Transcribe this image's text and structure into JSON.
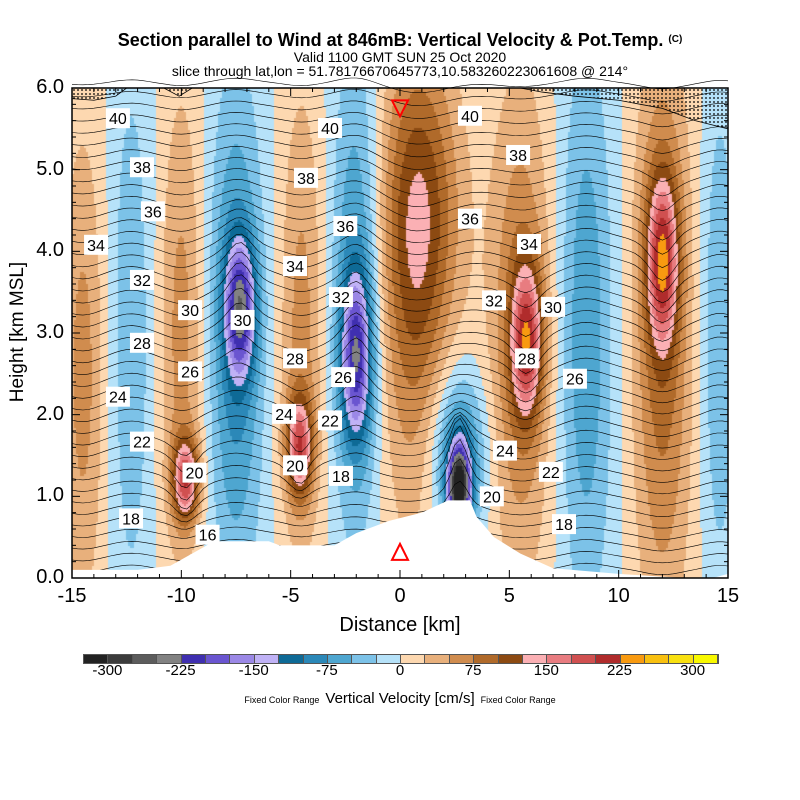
{
  "title": "Section parallel to Wind at 846mB: Vertical Velocity & Pot.Temp.",
  "title_mark": "(C)",
  "subtitle1": "Valid 1100 GMT SUN 25 Oct 2020",
  "subtitle2": "slice through lat,lon = 51.78176670645773,10.583260223061608 @ 214°",
  "chart_data": {
    "type": "heatmap",
    "xlabel": "Distance [km]",
    "ylabel": "Height [km MSL]",
    "xlim": [
      -15,
      15
    ],
    "ylim": [
      0,
      6
    ],
    "xticks": [
      "-15",
      "-10",
      "-5",
      "0",
      "5",
      "10",
      "15"
    ],
    "yticks": [
      "0.0",
      "1.0",
      "2.0",
      "3.0",
      "4.0",
      "5.0",
      "6.0"
    ],
    "field": "Vertical Velocity [cm/s]",
    "vertical_velocity_extrema": [
      {
        "distance": -9.8,
        "height": 1.2,
        "value": 170
      },
      {
        "distance": -7.3,
        "height": 3.3,
        "value": -170
      },
      {
        "distance": -4.6,
        "height": 1.6,
        "value": 160
      },
      {
        "distance": -2.0,
        "height": 2.7,
        "value": -165
      },
      {
        "distance": 1.0,
        "height": 4.5,
        "value": 100
      },
      {
        "distance": 2.7,
        "height": 1.1,
        "value": -290
      },
      {
        "distance": 5.8,
        "height": 2.9,
        "value": 160
      },
      {
        "distance": 8.5,
        "height": 3.0,
        "value": -70
      },
      {
        "distance": 12.0,
        "height": 3.9,
        "value": 160
      }
    ],
    "theta_labels": [
      {
        "v": "40",
        "d": -12.9,
        "h": 5.63
      },
      {
        "v": "38",
        "d": -11.8,
        "h": 5.03
      },
      {
        "v": "36",
        "d": -11.3,
        "h": 4.49
      },
      {
        "v": "34",
        "d": -13.9,
        "h": 4.08
      },
      {
        "v": "32",
        "d": -11.8,
        "h": 3.65
      },
      {
        "v": "30",
        "d": -9.6,
        "h": 3.28
      },
      {
        "v": "28",
        "d": -11.8,
        "h": 2.88
      },
      {
        "v": "26",
        "d": -9.6,
        "h": 2.53
      },
      {
        "v": "24",
        "d": -12.9,
        "h": 2.22
      },
      {
        "v": "22",
        "d": -11.8,
        "h": 1.67
      },
      {
        "v": "20",
        "d": -9.4,
        "h": 1.29
      },
      {
        "v": "18",
        "d": -12.3,
        "h": 0.73
      },
      {
        "v": "16",
        "d": -8.8,
        "h": 0.53
      },
      {
        "v": "30",
        "d": -7.2,
        "h": 3.16
      },
      {
        "v": "34",
        "d": -4.8,
        "h": 3.82
      },
      {
        "v": "38",
        "d": -4.3,
        "h": 4.9
      },
      {
        "v": "40",
        "d": -3.2,
        "h": 5.51
      },
      {
        "v": "36",
        "d": -2.5,
        "h": 4.31
      },
      {
        "v": "32",
        "d": -2.7,
        "h": 3.44
      },
      {
        "v": "28",
        "d": -4.8,
        "h": 2.69
      },
      {
        "v": "26",
        "d": -2.6,
        "h": 2.46
      },
      {
        "v": "24",
        "d": -5.3,
        "h": 2.01
      },
      {
        "v": "22",
        "d": -3.2,
        "h": 1.93
      },
      {
        "v": "20",
        "d": -4.8,
        "h": 1.38
      },
      {
        "v": "18",
        "d": -2.7,
        "h": 1.25
      },
      {
        "v": "40",
        "d": 3.2,
        "h": 5.66
      },
      {
        "v": "38",
        "d": 5.4,
        "h": 5.18
      },
      {
        "v": "36",
        "d": 3.2,
        "h": 4.4
      },
      {
        "v": "34",
        "d": 5.9,
        "h": 4.09
      },
      {
        "v": "32",
        "d": 4.3,
        "h": 3.4
      },
      {
        "v": "30",
        "d": 7.0,
        "h": 3.32
      },
      {
        "v": "28",
        "d": 5.8,
        "h": 2.69
      },
      {
        "v": "26",
        "d": 8.0,
        "h": 2.44
      },
      {
        "v": "24",
        "d": 4.8,
        "h": 1.56
      },
      {
        "v": "22",
        "d": 6.9,
        "h": 1.3
      },
      {
        "v": "20",
        "d": 4.2,
        "h": 1.0
      },
      {
        "v": "18",
        "d": 7.5,
        "h": 0.66
      }
    ],
    "markers": [
      {
        "shape": "triangle-down",
        "d": 0,
        "h": 5.75,
        "color": "#ff0000"
      },
      {
        "shape": "triangle-up",
        "d": 0,
        "h": 0.32,
        "color": "#ff0000"
      }
    ]
  },
  "colorbar": {
    "title": "Vertical Velocity [cm/s]",
    "note_left": "Fixed Color Range",
    "note_right": "Fixed Color Range",
    "range": [
      -325,
      325
    ],
    "labels": [
      "-300",
      "-225",
      "-150",
      "-75",
      "0",
      "75",
      "150",
      "225",
      "300"
    ],
    "colors": [
      "#222222",
      "#3c3c3c",
      "#5c5c5c",
      "#828282",
      "#3f2fb0",
      "#6a55d0",
      "#9b88e6",
      "#c0b2f6",
      "#0e6a96",
      "#2b88b8",
      "#4ea6d0",
      "#7cc2e8",
      "#b6e2f9",
      "#fdd8b0",
      "#e8b07c",
      "#d08c4e",
      "#b06a2a",
      "#8c4a12",
      "#fbb0b4",
      "#e87c80",
      "#d05050",
      "#b02c2c",
      "#f89a10",
      "#f8c010",
      "#f8e010",
      "#f8f800"
    ]
  }
}
